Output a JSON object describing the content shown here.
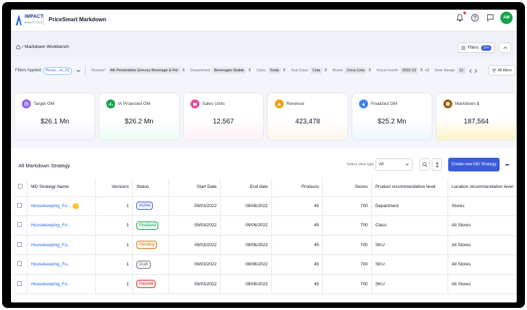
{
  "app": {
    "logo_line1": "IMPACT",
    "logo_line2": "ANALYTICS",
    "title": "PriceSmart Markdown",
    "avatar": "AM"
  },
  "breadcrumb": {
    "page": "Markdown Workbench"
  },
  "filters_button": {
    "label": "Filters",
    "count": "10+"
  },
  "filter_row": {
    "label": "Filters Applied",
    "preset": "Perso....er_01",
    "chips": [
      {
        "key": "Division*",
        "value": "4th Perishables Grocery Beverage & Pet",
        "x": "X"
      },
      {
        "key": "Department",
        "value": "Beverages-Stable",
        "x": "X"
      },
      {
        "key": "Class",
        "value": "Soda",
        "x": "X"
      },
      {
        "key": "Sub Class",
        "value": "Cola",
        "x": "X"
      },
      {
        "key": "Brand",
        "value": "Coca Cola",
        "x": "X"
      },
      {
        "key": "Fiscal month",
        "value": "2022-12",
        "x": "X",
        "plus": "+2"
      },
      {
        "key": "Date Range",
        "value": "12."
      }
    ],
    "all_filters": "All filters"
  },
  "kpis": [
    {
      "label": "Target GM",
      "value": "$26.1 Mn",
      "accent": "#8b5cf6",
      "tint": "#f5f3ff",
      "icon": "target-icon"
    },
    {
      "label": "IA Projected GM",
      "value": "$26.2 Mn",
      "accent": "#16a34a",
      "tint": "#ecfdf5",
      "icon": "chart-icon"
    },
    {
      "label": "Sales Units",
      "value": "12,567",
      "accent": "#ec4899",
      "tint": "#fdf2f8",
      "icon": "units-icon"
    },
    {
      "label": "Revenue",
      "value": "423,478",
      "accent": "#f59e0b",
      "tint": "#fff7ed",
      "icon": "revenue-icon"
    },
    {
      "label": "Finalized GM",
      "value": "$25.2 Mn",
      "accent": "#3b82f6",
      "tint": "#eff6ff",
      "icon": "finalized-icon"
    },
    {
      "label": "Markdown $",
      "value": "187,564",
      "accent": "#a16207",
      "tint": "#fef3c7",
      "icon": "markdown-icon"
    }
  ],
  "table": {
    "title": "All Markdown Strategy",
    "view_type_label": "Select view type",
    "view_type_value": "All",
    "create_label": "Create new MD Strategy",
    "more": "•••",
    "columns": [
      "MD Strategy Name",
      "Versions",
      "Status",
      "Start Date",
      "End date",
      "Products",
      "Stores",
      "Product recommendation level",
      "Location recommendation level"
    ],
    "rows": [
      {
        "name": "Housekeeping_Fo..",
        "warn": "!",
        "versions": "1",
        "status": "Active",
        "status_color": "#3b5bdb",
        "start": "09/03/2022",
        "end": "09/06/2022",
        "products": "45",
        "stores": "700",
        "prl": "Department",
        "lrl": "Stores"
      },
      {
        "name": "Housekeeping_Fo..",
        "versions": "1",
        "status": "Finalized",
        "status_color": "#16a34a",
        "start": "09/03/2022",
        "end": "09/06/2022",
        "products": "45",
        "stores": "700",
        "prl": "Class",
        "lrl": "All Stores"
      },
      {
        "name": "Housekeeping_Fo..",
        "versions": "1",
        "status": "Pending",
        "status_color": "#d97706",
        "start": "09/03/2022",
        "end": "09/06/2022",
        "products": "45",
        "stores": "700",
        "prl": "SKU",
        "lrl": "All Stores"
      },
      {
        "name": "Housekeeping_Fo..",
        "versions": "1",
        "status": "Draft",
        "status_color": "#6b7280",
        "start": "09/03/2022",
        "end": "09/06/2022",
        "products": "45",
        "stores": "700",
        "prl": "SKU",
        "lrl": "All Stores"
      },
      {
        "name": "Housekeeping_Fo..",
        "versions": "1",
        "status": "Paused",
        "status_color": "#dc2626",
        "start": "09/03/2022",
        "end": "09/06/2022",
        "products": "45",
        "stores": "700",
        "prl": "SKU",
        "lrl": "All Stores"
      }
    ]
  }
}
